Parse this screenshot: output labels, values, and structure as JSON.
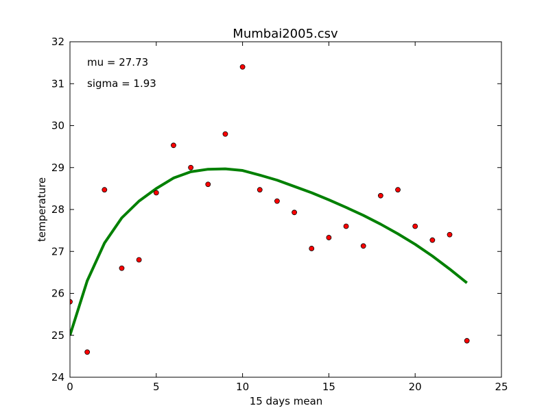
{
  "chart_data": {
    "type": "scatter",
    "title": "Mumbai2005.csv",
    "xlabel": "15 days mean",
    "ylabel": "temperature",
    "xlim": [
      0,
      25
    ],
    "ylim": [
      24,
      32
    ],
    "xticks": [
      0,
      5,
      10,
      15,
      20,
      25
    ],
    "yticks": [
      24,
      25,
      26,
      27,
      28,
      29,
      30,
      31,
      32
    ],
    "xtick_labels": [
      "0",
      "5",
      "10",
      "15",
      "20",
      "25"
    ],
    "ytick_labels": [
      "24",
      "25",
      "26",
      "27",
      "28",
      "29",
      "30",
      "31",
      "32"
    ],
    "grid": false,
    "annotations": [
      "mu = 27.73",
      "sigma = 1.93"
    ],
    "series": [
      {
        "type": "scatter",
        "color": "#ff0000",
        "x": [
          0,
          1,
          2,
          3,
          4,
          5,
          6,
          7,
          8,
          9,
          10,
          11,
          12,
          13,
          14,
          15,
          16,
          17,
          18,
          19,
          20,
          21,
          22,
          23
        ],
        "y": [
          25.8,
          24.6,
          28.47,
          26.6,
          26.8,
          28.4,
          29.53,
          29.0,
          28.6,
          29.8,
          31.4,
          28.47,
          28.2,
          27.93,
          27.07,
          27.33,
          27.6,
          27.13,
          28.33,
          28.47,
          27.6,
          27.27,
          27.4,
          24.87
        ]
      },
      {
        "type": "line",
        "color": "#008000",
        "x": [
          0,
          1,
          2,
          3,
          4,
          5,
          6,
          7,
          8,
          9,
          10,
          11,
          12,
          13,
          14,
          15,
          16,
          17,
          18,
          19,
          20,
          21,
          22,
          23
        ],
        "y": [
          25.0,
          26.3,
          27.2,
          27.8,
          28.2,
          28.5,
          28.75,
          28.9,
          28.96,
          28.97,
          28.93,
          28.82,
          28.7,
          28.55,
          28.4,
          28.23,
          28.05,
          27.86,
          27.65,
          27.42,
          27.17,
          26.89,
          26.58,
          26.25
        ]
      }
    ]
  }
}
